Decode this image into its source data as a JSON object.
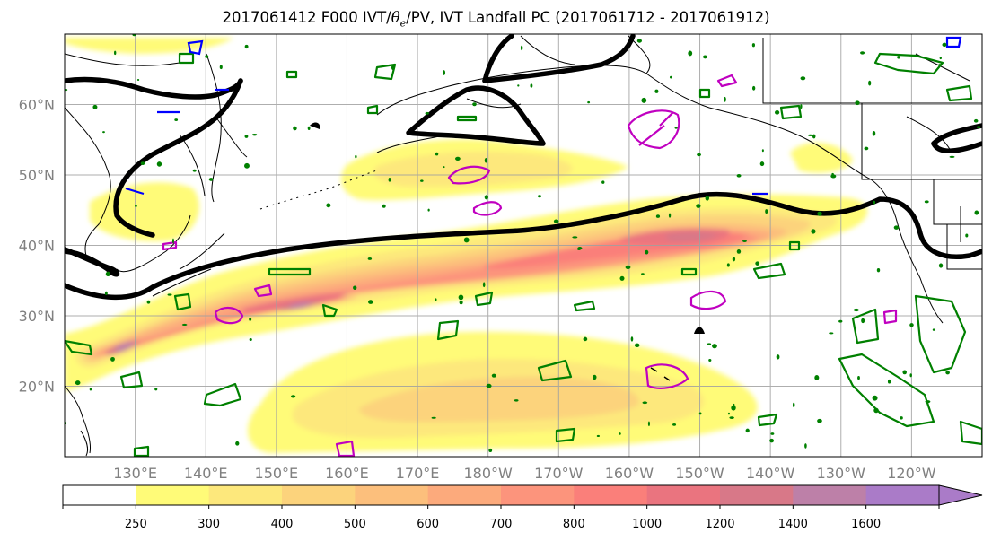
{
  "title": {
    "prefix": "2017061412 F000 IVT/",
    "theta": "θ",
    "theta_sub": "e",
    "suffix": "/PV, IVT Landfall PC (2017061712 - 2017061912)"
  },
  "map": {
    "lat_labels": [
      "60°N",
      "50°N",
      "40°N",
      "30°N",
      "20°N"
    ],
    "lat_values": [
      60,
      50,
      40,
      30,
      20
    ],
    "lon_labels": [
      "130°E",
      "140°E",
      "150°E",
      "160°E",
      "170°E",
      "180°W",
      "170°W",
      "160°W",
      "150°W",
      "140°W",
      "130°W",
      "120°W"
    ],
    "lon_values": [
      130,
      140,
      150,
      160,
      170,
      180,
      190,
      200,
      210,
      220,
      230,
      240
    ],
    "extent": {
      "lon_min": 120,
      "lon_max": 250,
      "lat_min": 10,
      "lat_max": 70
    },
    "overlays": [
      "IVT shading",
      "theta-e contour",
      "PV contours",
      "IVT landfall PC contours"
    ]
  },
  "colorbar": {
    "ticks": [
      "250",
      "300",
      "400",
      "500",
      "600",
      "700",
      "800",
      "1000",
      "1200",
      "1400",
      "1600"
    ],
    "colors": [
      "#ffffff",
      "#fffb78",
      "#fde87c",
      "#fcd37c",
      "#fcbf7c",
      "#fcaa7c",
      "#fc947c",
      "#fa7f7a",
      "#ea747f",
      "#d87888",
      "#bd80a8",
      "#aa7bc8"
    ],
    "extend": "max"
  },
  "legend_colors": {
    "ivt_shading": "#ffc87a",
    "theta_e_contour": "#000000",
    "pv_contour_green": "#008000",
    "pv_contour_magenta": "#c000c0",
    "pv_contour_blue": "#0000ff"
  }
}
